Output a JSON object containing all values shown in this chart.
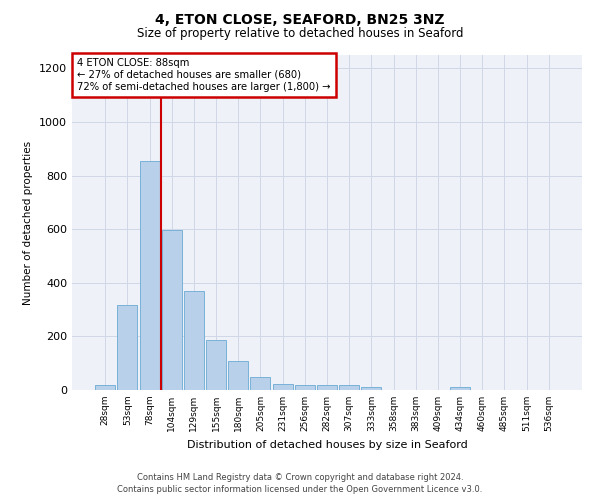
{
  "title": "4, ETON CLOSE, SEAFORD, BN25 3NZ",
  "subtitle": "Size of property relative to detached houses in Seaford",
  "xlabel": "Distribution of detached houses by size in Seaford",
  "ylabel": "Number of detached properties",
  "categories": [
    "28sqm",
    "53sqm",
    "78sqm",
    "104sqm",
    "129sqm",
    "155sqm",
    "180sqm",
    "205sqm",
    "231sqm",
    "256sqm",
    "282sqm",
    "307sqm",
    "333sqm",
    "358sqm",
    "383sqm",
    "409sqm",
    "434sqm",
    "460sqm",
    "485sqm",
    "511sqm",
    "536sqm"
  ],
  "values": [
    18,
    318,
    855,
    598,
    370,
    185,
    108,
    48,
    22,
    18,
    18,
    18,
    10,
    0,
    0,
    0,
    10,
    0,
    0,
    0,
    0
  ],
  "bar_color": "#b8d0ea",
  "bar_edgecolor": "#6aaad4",
  "redline_x": 2.5,
  "annotation_text": "4 ETON CLOSE: 88sqm\n← 27% of detached houses are smaller (680)\n72% of semi-detached houses are larger (1,800) →",
  "annotation_box_facecolor": "#ffffff",
  "annotation_box_edgecolor": "#cc0000",
  "ylim": [
    0,
    1250
  ],
  "yticks": [
    0,
    200,
    400,
    600,
    800,
    1000,
    1200
  ],
  "footer_line1": "Contains HM Land Registry data © Crown copyright and database right 2024.",
  "footer_line2": "Contains public sector information licensed under the Open Government Licence v3.0.",
  "bg_color": "#ffffff",
  "plot_bg_color": "#eef2f8",
  "grid_color": "#d0d8e8"
}
